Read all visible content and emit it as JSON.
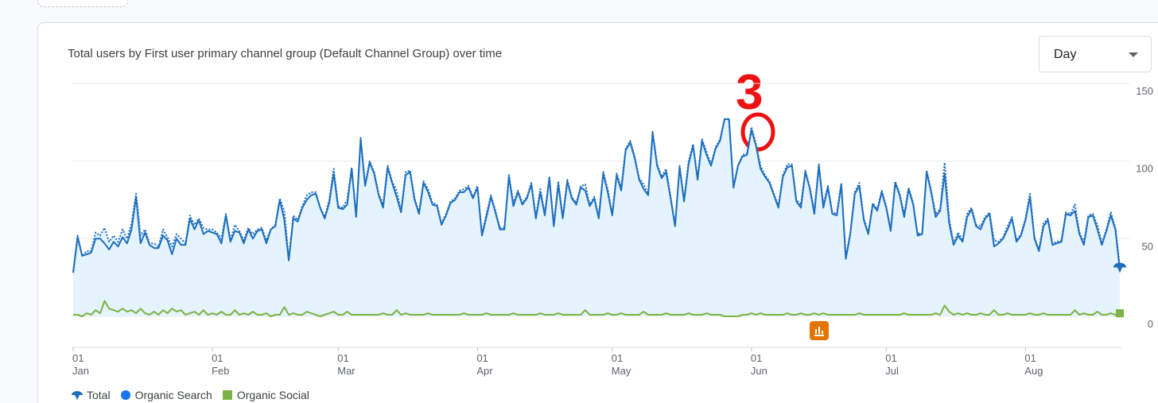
{
  "chart_data": {
    "type": "line",
    "title": "Total users by First user primary channel group (Default Channel Group) over time",
    "annotation": "3",
    "categories": [
      "01\nJan",
      null,
      null,
      null,
      null,
      null,
      null,
      null,
      null,
      null,
      null,
      null,
      null,
      null,
      null,
      null,
      null,
      null,
      null,
      null,
      null,
      null,
      null,
      null,
      null,
      null,
      null,
      null,
      null,
      null,
      null,
      "01\nFeb",
      null,
      null,
      null,
      null,
      null,
      null,
      null,
      null,
      null,
      null,
      null,
      null,
      null,
      null,
      null,
      null,
      null,
      null,
      null,
      null,
      null,
      null,
      null,
      null,
      null,
      null,
      null,
      "01\nMar",
      null,
      null,
      null,
      null,
      null,
      null,
      null,
      null,
      null,
      null,
      null,
      null,
      null,
      null,
      null,
      null,
      null,
      null,
      null,
      null,
      null,
      null,
      null,
      null,
      null,
      null,
      null,
      null,
      null,
      null,
      "01\nApr",
      null,
      null,
      null,
      null,
      null,
      null,
      null,
      null,
      null,
      null,
      null,
      null,
      null,
      null,
      null,
      null,
      null,
      null,
      null,
      null,
      null,
      null,
      null,
      null,
      null,
      null,
      null,
      null,
      null,
      "01\nMay",
      null,
      null,
      null,
      null,
      null,
      null,
      null,
      null,
      null,
      null,
      null,
      null,
      null,
      null,
      null,
      null,
      null,
      null,
      null,
      null,
      null,
      null,
      null,
      null,
      null,
      null,
      null,
      null,
      null,
      null,
      "01\nJun",
      null,
      null,
      null,
      null,
      null,
      null,
      null,
      null,
      null,
      null,
      null,
      null,
      null,
      null,
      null,
      null,
      null,
      null,
      null,
      null,
      null,
      null,
      null,
      null,
      null,
      null,
      null,
      null,
      null,
      "01\nJul",
      null,
      null,
      null,
      null,
      null,
      null,
      null,
      null,
      null,
      null,
      null,
      null,
      null,
      null,
      null,
      null,
      null,
      null,
      null,
      null,
      null,
      null,
      null,
      null,
      null,
      null,
      null,
      null,
      null,
      null,
      "01\nAug",
      null,
      null,
      null,
      null,
      null,
      null,
      null,
      null,
      null,
      null,
      null,
      null,
      null,
      null,
      null,
      null,
      null,
      null,
      null,
      null,
      null
    ],
    "series": [
      {
        "name": "Total",
        "color": "#1f6fbf",
        "style": "dotted",
        "values": [
          29,
          52,
          39,
          42,
          42,
          54,
          52,
          57,
          48,
          52,
          48,
          56,
          50,
          60,
          79,
          52,
          56,
          47,
          47,
          45,
          56,
          51,
          45,
          53,
          50,
          47,
          65,
          59,
          63,
          57,
          56,
          56,
          54,
          50,
          66,
          49,
          59,
          55,
          49,
          57,
          53,
          56,
          57,
          49,
          56,
          59,
          76,
          68,
          37,
          65,
          62,
          71,
          78,
          80,
          80,
          70,
          64,
          75,
          95,
          71,
          70,
          75,
          96,
          65,
          115,
          85,
          100,
          93,
          79,
          72,
          97,
          87,
          81,
          68,
          93,
          94,
          76,
          67,
          87,
          82,
          73,
          72,
          60,
          66,
          74,
          76,
          81,
          82,
          84,
          77,
          84,
          53,
          66,
          78,
          68,
          57,
          57,
          91,
          73,
          81,
          73,
          77,
          86,
          64,
          82,
          66,
          90,
          59,
          87,
          64,
          88,
          77,
          73,
          84,
          85,
          72,
          77,
          64,
          93,
          82,
          66,
          92,
          83,
          108,
          113,
          103,
          89,
          85,
          79,
          119,
          98,
          90,
          95,
          77,
          59,
          97,
          75,
          100,
          111,
          89,
          114,
          106,
          98,
          109,
          114,
          127,
          127,
          83,
          97,
          104,
          105,
          122,
          111,
          97,
          91,
          87,
          79,
          71,
          91,
          98,
          98,
          75,
          72,
          94,
          83,
          68,
          98,
          72,
          84,
          67,
          66,
          86,
          38,
          54,
          80,
          86,
          63,
          54,
          73,
          69,
          81,
          71,
          56,
          87,
          79,
          66,
          83,
          73,
          53,
          54,
          94,
          81,
          66,
          69,
          99,
          63,
          47,
          54,
          49,
          66,
          70,
          59,
          58,
          64,
          67,
          49,
          48,
          51,
          58,
          64,
          49,
          53,
          63,
          79,
          51,
          43,
          60,
          63,
          47,
          48,
          49,
          67,
          66,
          72,
          54,
          48,
          65,
          66,
          59,
          47,
          56,
          67,
          57,
          32
        ]
      },
      {
        "name": "Organic Search",
        "color": "#1f6fbf",
        "style": "solid",
        "values": [
          28,
          51,
          39,
          40,
          41,
          50,
          50,
          47,
          43,
          48,
          45,
          51,
          47,
          56,
          77,
          47,
          54,
          46,
          44,
          44,
          52,
          49,
          40,
          50,
          46,
          46,
          63,
          56,
          62,
          53,
          55,
          54,
          53,
          47,
          65,
          48,
          55,
          54,
          47,
          56,
          50,
          55,
          56,
          47,
          56,
          58,
          75,
          62,
          36,
          63,
          61,
          70,
          75,
          78,
          79,
          70,
          63,
          73,
          92,
          70,
          69,
          72,
          95,
          64,
          114,
          84,
          99,
          92,
          78,
          70,
          96,
          86,
          77,
          67,
          91,
          93,
          75,
          66,
          86,
          80,
          72,
          71,
          59,
          65,
          73,
          75,
          80,
          80,
          83,
          76,
          83,
          52,
          64,
          77,
          67,
          56,
          56,
          90,
          71,
          80,
          72,
          76,
          85,
          63,
          80,
          65,
          89,
          58,
          85,
          63,
          87,
          76,
          72,
          83,
          81,
          71,
          76,
          63,
          92,
          80,
          65,
          91,
          81,
          107,
          112,
          102,
          88,
          82,
          78,
          118,
          97,
          89,
          93,
          76,
          58,
          96,
          74,
          98,
          110,
          88,
          113,
          104,
          97,
          108,
          113,
          127,
          127,
          83,
          97,
          103,
          104,
          120,
          110,
          95,
          90,
          86,
          78,
          70,
          90,
          96,
          97,
          74,
          70,
          93,
          82,
          66,
          97,
          70,
          83,
          66,
          65,
          85,
          37,
          53,
          79,
          84,
          62,
          53,
          72,
          68,
          80,
          70,
          55,
          86,
          78,
          64,
          82,
          72,
          52,
          53,
          93,
          80,
          64,
          68,
          92,
          60,
          46,
          52,
          48,
          64,
          69,
          58,
          56,
          63,
          66,
          45,
          47,
          50,
          56,
          63,
          48,
          52,
          62,
          77,
          50,
          42,
          58,
          62,
          46,
          47,
          48,
          66,
          65,
          68,
          53,
          46,
          64,
          65,
          56,
          46,
          55,
          65,
          56,
          30
        ]
      },
      {
        "name": "Organic Social",
        "color": "#7cb342",
        "style": "solid",
        "values": [
          1,
          1,
          0,
          2,
          1,
          4,
          2,
          10,
          5,
          4,
          3,
          5,
          3,
          4,
          2,
          5,
          2,
          1,
          3,
          1,
          4,
          2,
          5,
          3,
          4,
          1,
          2,
          3,
          1,
          4,
          1,
          2,
          1,
          3,
          1,
          1,
          4,
          1,
          2,
          1,
          3,
          1,
          1,
          2,
          0,
          1,
          1,
          6,
          1,
          2,
          1,
          1,
          3,
          2,
          1,
          0,
          1,
          2,
          3,
          1,
          1,
          3,
          1,
          1,
          1,
          1,
          1,
          1,
          1,
          2,
          1,
          1,
          4,
          1,
          2,
          1,
          1,
          1,
          1,
          2,
          1,
          1,
          1,
          1,
          1,
          1,
          1,
          2,
          1,
          1,
          1,
          1,
          2,
          1,
          1,
          1,
          1,
          1,
          2,
          1,
          1,
          1,
          1,
          1,
          2,
          1,
          1,
          1,
          2,
          1,
          1,
          1,
          1,
          1,
          4,
          1,
          1,
          1,
          1,
          2,
          1,
          1,
          2,
          1,
          1,
          1,
          1,
          3,
          1,
          1,
          1,
          1,
          2,
          1,
          1,
          1,
          1,
          2,
          1,
          1,
          1,
          2,
          1,
          1,
          1,
          0,
          0,
          0,
          0,
          1,
          1,
          2,
          1,
          2,
          1,
          1,
          1,
          1,
          1,
          2,
          1,
          1,
          2,
          1,
          1,
          2,
          1,
          2,
          1,
          1,
          1,
          1,
          1,
          1,
          1,
          2,
          1,
          1,
          1,
          1,
          1,
          1,
          1,
          1,
          1,
          2,
          1,
          1,
          1,
          1,
          1,
          1,
          2,
          1,
          7,
          3,
          1,
          2,
          1,
          2,
          1,
          1,
          2,
          1,
          1,
          4,
          1,
          1,
          2,
          1,
          1,
          1,
          1,
          2,
          1,
          1,
          2,
          1,
          1,
          1,
          1,
          1,
          1,
          4,
          1,
          2,
          1,
          1,
          3,
          1,
          1,
          2,
          1,
          2
        ]
      }
    ],
    "ylim": [
      0,
      150
    ],
    "yticks": [
      0,
      50,
      100,
      150
    ],
    "grid": true,
    "area_color": "#e4f3fc"
  },
  "period_selector": {
    "selected": "Day"
  }
}
